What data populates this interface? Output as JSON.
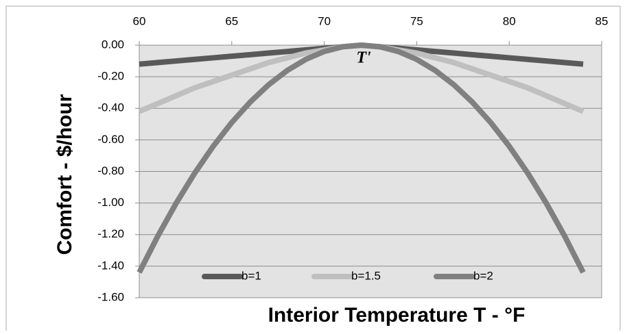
{
  "chart_data": {
    "type": "line",
    "x_label": "Interior Temperature T -  °F",
    "y_label": "Comfort - $/hour",
    "annotation": "T'",
    "x": [
      60,
      61,
      62,
      63,
      64,
      65,
      66,
      67,
      68,
      69,
      70,
      71,
      72,
      73,
      74,
      75,
      76,
      77,
      78,
      79,
      80,
      81,
      82,
      83,
      84
    ],
    "series": [
      {
        "name": "b=1",
        "color": "#595959",
        "values": [
          -0.12,
          -0.11,
          -0.1,
          -0.09,
          -0.08,
          -0.07,
          -0.06,
          -0.05,
          -0.04,
          -0.03,
          -0.02,
          -0.01,
          0,
          -0.01,
          -0.02,
          -0.03,
          -0.04,
          -0.05,
          -0.06,
          -0.07,
          -0.08,
          -0.09,
          -0.1,
          -0.11,
          -0.12
        ]
      },
      {
        "name": "b=1.5",
        "color": "#bfbfbf",
        "values": [
          -0.42,
          -0.37,
          -0.32,
          -0.27,
          -0.23,
          -0.19,
          -0.15,
          -0.11,
          -0.08,
          -0.05,
          -0.03,
          -0.01,
          0,
          -0.01,
          -0.03,
          -0.05,
          -0.08,
          -0.11,
          -0.15,
          -0.19,
          -0.23,
          -0.27,
          -0.32,
          -0.37,
          -0.42
        ]
      },
      {
        "name": "b=2",
        "color": "#808080",
        "values": [
          -1.44,
          -1.21,
          -1.0,
          -0.81,
          -0.64,
          -0.49,
          -0.36,
          -0.25,
          -0.16,
          -0.09,
          -0.04,
          -0.01,
          0,
          -0.01,
          -0.04,
          -0.09,
          -0.16,
          -0.25,
          -0.36,
          -0.49,
          -0.64,
          -0.81,
          -1.0,
          -1.21,
          -1.44
        ]
      }
    ],
    "xlim": [
      60,
      85
    ],
    "xticks": [
      60,
      65,
      70,
      75,
      80,
      85
    ],
    "ylim": [
      -1.6,
      0
    ],
    "yticks": [
      {
        "value": 0,
        "label": "0.00"
      },
      {
        "value": -0.2,
        "label": "-0.20"
      },
      {
        "value": -0.4,
        "label": "-0.40"
      },
      {
        "value": -0.6,
        "label": "-0.60"
      },
      {
        "value": -0.8,
        "label": "-0.80"
      },
      {
        "value": -1.0,
        "label": "-1.00"
      },
      {
        "value": -1.2,
        "label": "-1.20"
      },
      {
        "value": -1.4,
        "label": "-1.40"
      },
      {
        "value": -1.6,
        "label": "-1.60"
      }
    ],
    "grid": true,
    "legend": "bottom"
  }
}
